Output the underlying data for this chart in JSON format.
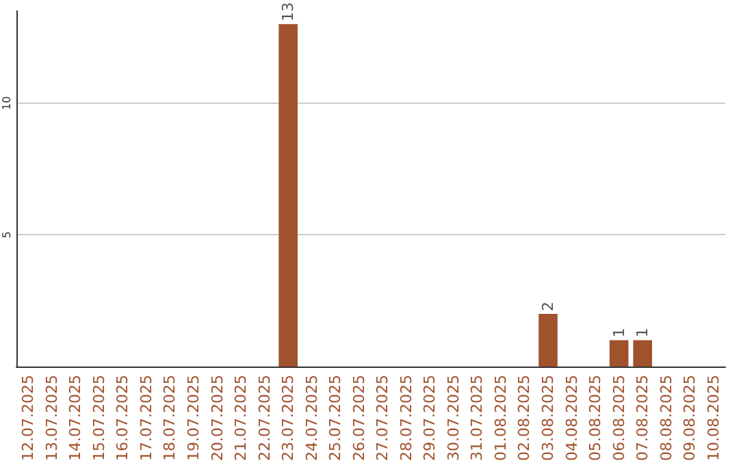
{
  "chart_data": {
    "type": "bar",
    "categories": [
      "12.07.2025",
      "13.07.2025",
      "14.07.2025",
      "15.07.2025",
      "16.07.2025",
      "17.07.2025",
      "18.07.2025",
      "19.07.2025",
      "20.07.2025",
      "21.07.2025",
      "22.07.2025",
      "23.07.2025",
      "24.07.2025",
      "25.07.2025",
      "26.07.2025",
      "27.07.2025",
      "28.07.2025",
      "29.07.2025",
      "30.07.2025",
      "31.07.2025",
      "01.08.2025",
      "02.08.2025",
      "03.08.2025",
      "04.08.2025",
      "05.08.2025",
      "06.08.2025",
      "07.08.2025",
      "08.08.2025",
      "09.08.2025",
      "10.08.2025"
    ],
    "values": [
      0,
      0,
      0,
      0,
      0,
      0,
      0,
      0,
      0,
      0,
      0,
      13,
      0,
      0,
      0,
      0,
      0,
      0,
      0,
      0,
      0,
      0,
      2,
      0,
      0,
      1,
      1,
      0,
      0,
      0
    ],
    "value_labels": [
      null,
      null,
      null,
      null,
      null,
      null,
      null,
      null,
      null,
      null,
      null,
      "13",
      null,
      null,
      null,
      null,
      null,
      null,
      null,
      null,
      null,
      null,
      "2",
      null,
      null,
      "1",
      "1",
      null,
      null,
      null
    ],
    "color": "#a0522d",
    "ylim": [
      0,
      13.5
    ],
    "yticks": [
      5,
      10
    ],
    "grid": "y"
  }
}
